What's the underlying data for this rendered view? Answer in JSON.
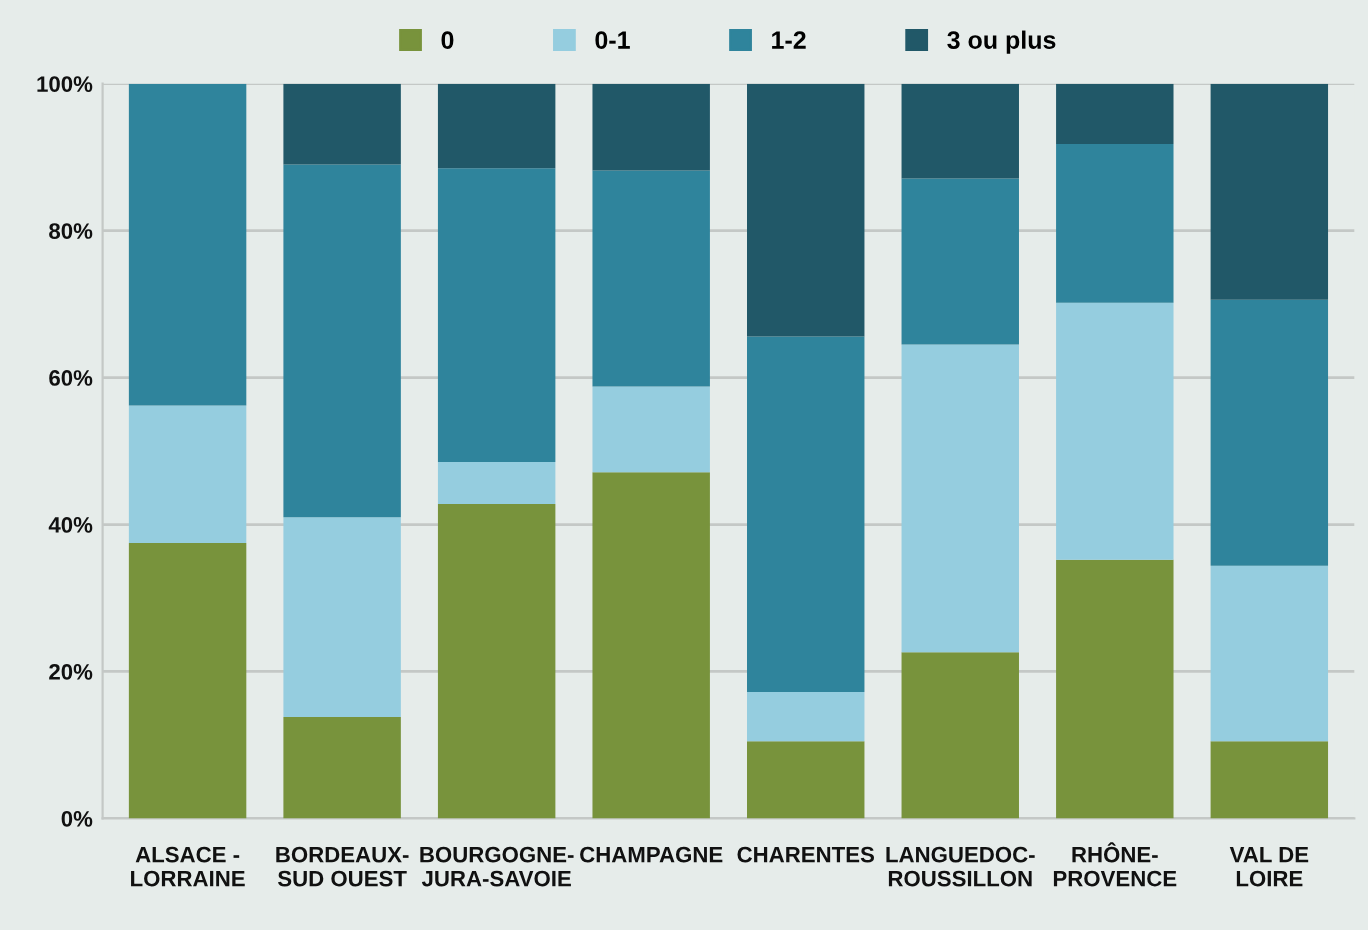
{
  "chart_data": {
    "type": "bar",
    "stacked": true,
    "categories": [
      "ALSACE -\nLORRAINE",
      "BORDEAUX-\nSUD OUEST",
      "BOURGOGNE-\nJURA-SAVOIE",
      "CHAMPAGNE",
      "CHARENTES",
      "LANGUEDOC-\nROUSSILLON",
      "RHÔNE-\nPROVENCE",
      "VAL DE\nLOIRE"
    ],
    "series": [
      {
        "name": "0",
        "color": "#78933c",
        "values": [
          37.5,
          13.8,
          42.8,
          47.1,
          10.5,
          22.6,
          35.2,
          10.5
        ]
      },
      {
        "name": "0-1",
        "color": "#95cddf",
        "values": [
          18.7,
          27.2,
          5.7,
          11.7,
          6.7,
          41.9,
          35.0,
          23.9
        ]
      },
      {
        "name": "1-2",
        "color": "#2f849c",
        "values": [
          43.8,
          48.0,
          40.0,
          29.4,
          48.4,
          22.6,
          21.6,
          36.2
        ]
      },
      {
        "name": "3 ou plus",
        "color": "#215868",
        "values": [
          0,
          11.0,
          11.5,
          11.8,
          34.4,
          12.9,
          8.2,
          29.4
        ]
      }
    ],
    "ylim": [
      0,
      100
    ],
    "yticks": [
      {
        "value": 0,
        "label": "0%"
      },
      {
        "value": 20,
        "label": "20%"
      },
      {
        "value": 40,
        "label": "40%"
      },
      {
        "value": 60,
        "label": "60%"
      },
      {
        "value": 80,
        "label": "80%"
      },
      {
        "value": 100,
        "label": "100%"
      }
    ],
    "grid": "y",
    "legend": "top"
  }
}
